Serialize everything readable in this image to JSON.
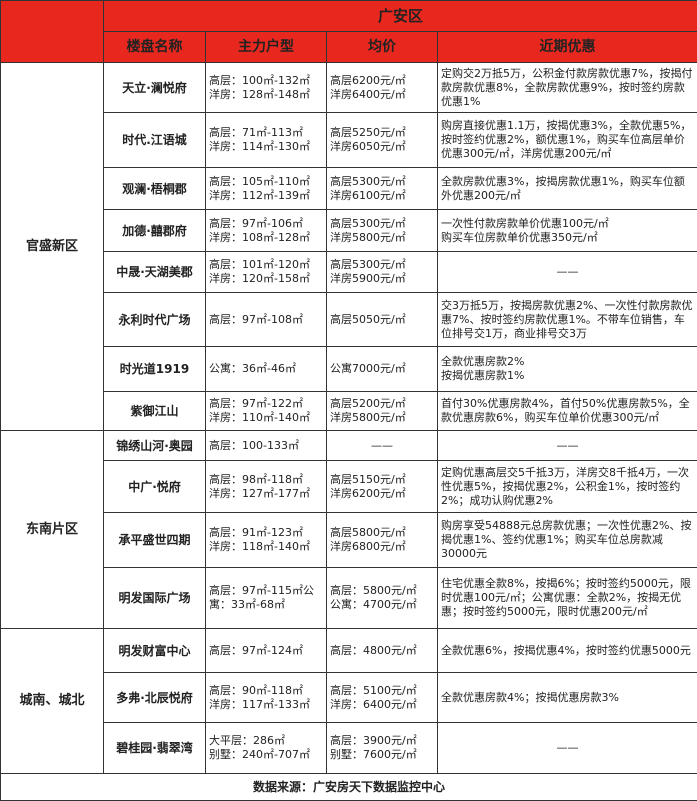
{
  "district": "广安区",
  "headers": [
    "楼盘名称",
    "主力户型",
    "均价",
    "近期优惠"
  ],
  "colors": {
    "header_bg": "#e8281e",
    "border": "#333333"
  },
  "regions": [
    {
      "name": "官盛新区",
      "rows": [
        {
          "name": "天立·澜悦府",
          "types": [
            "高层：100㎡-132㎡",
            "洋房：128㎡-148㎡"
          ],
          "prices": [
            "高层6200元/㎡",
            "洋房6400元/㎡"
          ],
          "promo": "定购交2万抵5万，公积金付款房款优惠7%，按揭付款房款优惠8%，全款房款优惠9%，按时签约房款优惠1%"
        },
        {
          "name": "时代.江语城",
          "types": [
            "高层：71㎡-113㎡",
            "洋房：114㎡-130㎡"
          ],
          "prices": [
            "高层5250元/㎡",
            "洋房6050元/㎡"
          ],
          "promo": "购房直接优惠1.1万，按揭优惠3%，全款优惠5%，按时签约优惠2%，额优惠1%，购买车位高层单价优惠300元/㎡，洋房优惠200元/㎡"
        },
        {
          "name": "观澜·梧桐郡",
          "types": [
            "高层：105㎡-110㎡",
            "洋房：112㎡-139㎡"
          ],
          "prices": [
            "高层5300元/㎡",
            "洋房6100元/㎡"
          ],
          "promo": "全款房款优惠3%，按揭房款优惠1%，购买车位额外优惠200元/㎡"
        },
        {
          "name": "加德·囍郡府",
          "types": [
            "高层：97㎡-106㎡",
            "洋房：108㎡-128㎡"
          ],
          "prices": [
            "高层5300元/㎡",
            "洋房5800元/㎡"
          ],
          "promo_lines": [
            "一次性付款房款单价优惠100元/㎡",
            "购买车位房款单价优惠350元/㎡"
          ]
        },
        {
          "name": "中晟·天湖美郡",
          "types": [
            "高层：101㎡-120㎡",
            "洋房：120㎡-158㎡"
          ],
          "prices": [
            "高层5300元/㎡",
            "洋房5900元/㎡"
          ],
          "promo": "——",
          "promo_center": true
        },
        {
          "name": "永利时代广场",
          "types": [
            "高层：97㎡-108㎡"
          ],
          "prices": [
            "高层5050元/㎡"
          ],
          "promo": "交3万抵5万，按揭房款优惠2%、一次性付款房款优惠7%、按时签约房款优惠1%。不带车位销售，车位排号交1万，商业排号交3万"
        },
        {
          "name": "时光道1919",
          "types": [
            "公寓：36㎡-46㎡"
          ],
          "prices": [
            "公寓7000元/㎡"
          ],
          "promo_lines": [
            "全款优惠房款2%",
            "按揭优惠房款1%"
          ]
        },
        {
          "name": "紫御江山",
          "types": [
            "高层：97㎡-122㎡",
            "洋房：110㎡-140㎡"
          ],
          "prices": [
            "高层5200元/㎡",
            "洋房5800元/㎡"
          ],
          "promo": "首付30%优惠房款4%，首付50%优惠房款5%，全款优惠房款6%，购买车位单价优惠300元/㎡"
        }
      ]
    },
    {
      "name": "东南片区",
      "rows": [
        {
          "name": "锦绣山河·奥园",
          "types": [
            "高层：100-133㎡"
          ],
          "prices": [
            "——"
          ],
          "price_center": true,
          "promo": "——",
          "promo_center": true
        },
        {
          "name": "中广·悦府",
          "types": [
            "高层：98㎡-118㎡",
            "洋房：127㎡-177㎡"
          ],
          "prices": [
            "高层5150元/㎡",
            "洋房6200元/㎡"
          ],
          "promo": "定购优惠高层交5千抵3万，洋房交8千抵4万，一次性优惠5%，按揭优惠2%，公积金1%，按时签约2%；成功认购优惠2%"
        },
        {
          "name": "承平盛世四期",
          "types": [
            "高层：91㎡-123㎡",
            "洋房：118㎡-140㎡"
          ],
          "prices": [
            "高层5800元/㎡",
            "洋房6800元/㎡"
          ],
          "promo": "购房享受54888元总房款优惠；一次性优惠2%、按揭优惠1%、签约优惠1%；购买车位总房款减30000元"
        },
        {
          "name": "明发国际广场",
          "types": [
            "高层：97㎡-115㎡公寓：33㎡-68㎡"
          ],
          "types_wrap": true,
          "prices": [
            "高层：5800元/㎡",
            "公寓：4700元/㎡"
          ],
          "promo": "住宅优惠全款8%，按揭6%；按时签约5000元，限时优惠100元/㎡；公寓优惠：全款2%，按揭无优惠；按时签约5000元，限时优惠200元/㎡"
        }
      ]
    },
    {
      "name": "城南、城北",
      "rows": [
        {
          "name": "明发财富中心",
          "types": [
            "高层：97㎡-124㎡"
          ],
          "prices": [
            "高层：4800元/㎡"
          ],
          "promo": "全款优惠6%，按揭优惠4%，按时签约优惠5000元"
        },
        {
          "name": "多弗·北辰悦府",
          "types": [
            "高层：90㎡-118㎡",
            "洋房：117㎡-133㎡"
          ],
          "prices": [
            "高层：5100元/㎡",
            "洋房：6400元/㎡"
          ],
          "promo": "全款优惠房款4%；按揭优惠房款3%"
        },
        {
          "name": "碧桂园·翡翠湾",
          "types": [
            "大平层：286㎡",
            "别墅：240㎡-707㎡"
          ],
          "prices": [
            "高层：3900元/㎡",
            "别墅：7600元/㎡"
          ],
          "promo": "——",
          "promo_center": true
        }
      ]
    }
  ],
  "footer": "数据来源：广安房天下数据监控中心"
}
